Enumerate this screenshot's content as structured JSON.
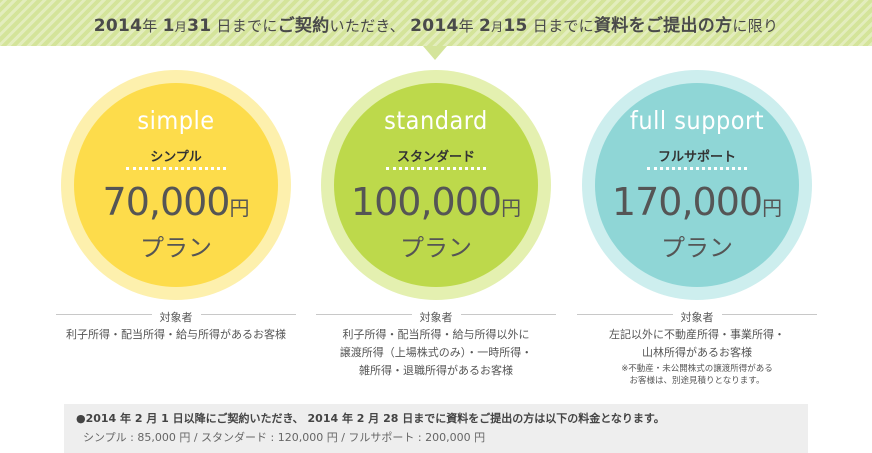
{
  "banner": {
    "y1": "2014",
    "nen1": "年",
    "m1": "1",
    "gatsu1": "月",
    "d1": "31",
    "hi_made1": "日までに",
    "keiyaku": "ご契約",
    "itadaki": "いただき、",
    "y2": "2014",
    "nen2": "年",
    "m2": "2",
    "gatsu2": "月",
    "d2": "15",
    "hi_made2": "日までに",
    "shiryou": "資料をご提出の方",
    "kagiri": "に限り"
  },
  "plans": [
    {
      "name_en": "simple",
      "name_ja": "シンプル",
      "price": "70,000",
      "yen": "円",
      "plan_word": "プラン",
      "ring_color": "#fdf0ad",
      "core_color": "#fddc4b",
      "target_label": "対象者",
      "target_lines": [
        "利子所得・配当所得・給与所得があるお客様"
      ],
      "note_lines": []
    },
    {
      "name_en": "standard",
      "name_ja": "スタンダード",
      "price": "100,000",
      "yen": "円",
      "plan_word": "プラン",
      "ring_color": "#e4f0b0",
      "core_color": "#bdd94b",
      "target_label": "対象者",
      "target_lines": [
        "利子所得・配当所得・給与所得以外に",
        "譲渡所得（上場株式のみ）・一時所得・",
        "雑所得・退職所得があるお客様"
      ],
      "note_lines": []
    },
    {
      "name_en": "full support",
      "name_ja": "フルサポート",
      "price": "170,000",
      "yen": "円",
      "plan_word": "プラン",
      "ring_color": "#cdeeee",
      "core_color": "#8fd6d6",
      "target_label": "対象者",
      "target_lines": [
        "左記以外に不動産所得・事業所得・",
        "山林所得があるお客様"
      ],
      "note_lines": [
        "※不動産・未公開株式の譲渡所得がある",
        "お客様は、別途見積りとなります。"
      ]
    }
  ],
  "notice": {
    "line1": "●2014 年 2 月 1 日以降にご契約いただき、 2014 年 2 月 28 日までに資料をご提出の方は以下の料金となります。",
    "line2": "シンプル : 85,000 円 / スタンダード : 120,000 円 / フルサポート : 200,000 円",
    "bg_color": "#eeeeee"
  }
}
